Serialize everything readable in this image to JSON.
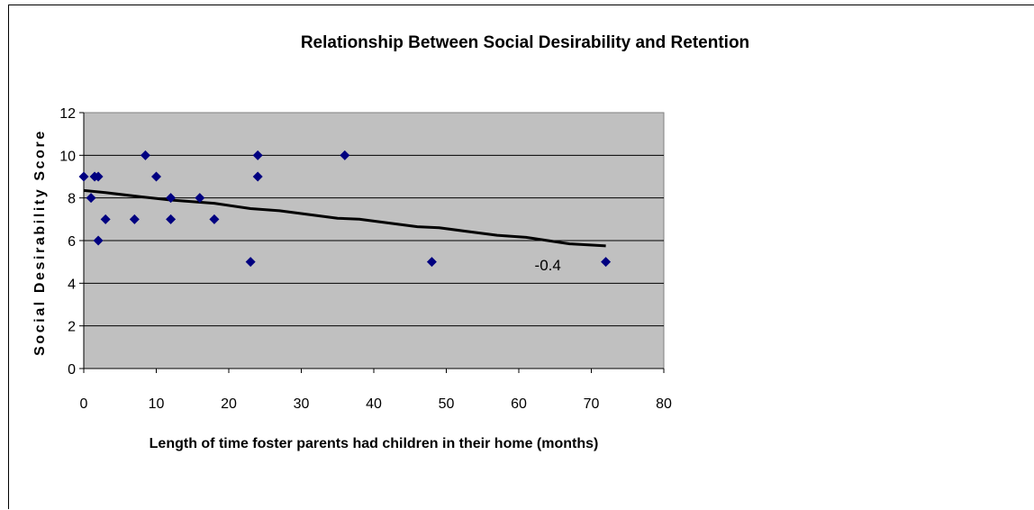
{
  "chart_data": {
    "type": "scatter",
    "title": "Relationship Between Social Desirability and Retention",
    "xlabel": "Length of time foster parents had children in their home (months)",
    "ylabel": "Social Desirability Score",
    "xlim": [
      0,
      80
    ],
    "ylim": [
      0,
      12
    ],
    "xticks": [
      "0",
      "10",
      "20",
      "30",
      "40",
      "50",
      "60",
      "70",
      "80"
    ],
    "yticks": [
      "0",
      "2",
      "4",
      "6",
      "8",
      "10",
      "12"
    ],
    "grid": true,
    "legend": "none",
    "plot_background": "#c0c0c0",
    "marker_color": "#000080",
    "trend_color": "#000000",
    "points": [
      {
        "x": 0,
        "y": 9
      },
      {
        "x": 1,
        "y": 8
      },
      {
        "x": 1.5,
        "y": 9
      },
      {
        "x": 2,
        "y": 9
      },
      {
        "x": 2,
        "y": 6
      },
      {
        "x": 3,
        "y": 7
      },
      {
        "x": 7,
        "y": 7
      },
      {
        "x": 8.5,
        "y": 10
      },
      {
        "x": 10,
        "y": 9
      },
      {
        "x": 12,
        "y": 8
      },
      {
        "x": 12,
        "y": 7
      },
      {
        "x": 16,
        "y": 8
      },
      {
        "x": 18,
        "y": 7
      },
      {
        "x": 23,
        "y": 5
      },
      {
        "x": 24,
        "y": 10
      },
      {
        "x": 24,
        "y": 9
      },
      {
        "x": 36,
        "y": 10
      },
      {
        "x": 48,
        "y": 5
      },
      {
        "x": 72,
        "y": 5
      }
    ],
    "trendline": {
      "x": [
        0,
        3,
        8,
        12,
        18,
        23,
        27,
        35,
        38,
        46,
        49,
        57,
        61,
        67,
        72
      ],
      "y": [
        8.35,
        8.25,
        8.05,
        7.9,
        7.75,
        7.5,
        7.4,
        7.05,
        7.0,
        6.65,
        6.6,
        6.25,
        6.15,
        5.85,
        5.75
      ]
    },
    "annotation": {
      "text": "-0.4",
      "x": 64,
      "y": 4.6
    }
  }
}
